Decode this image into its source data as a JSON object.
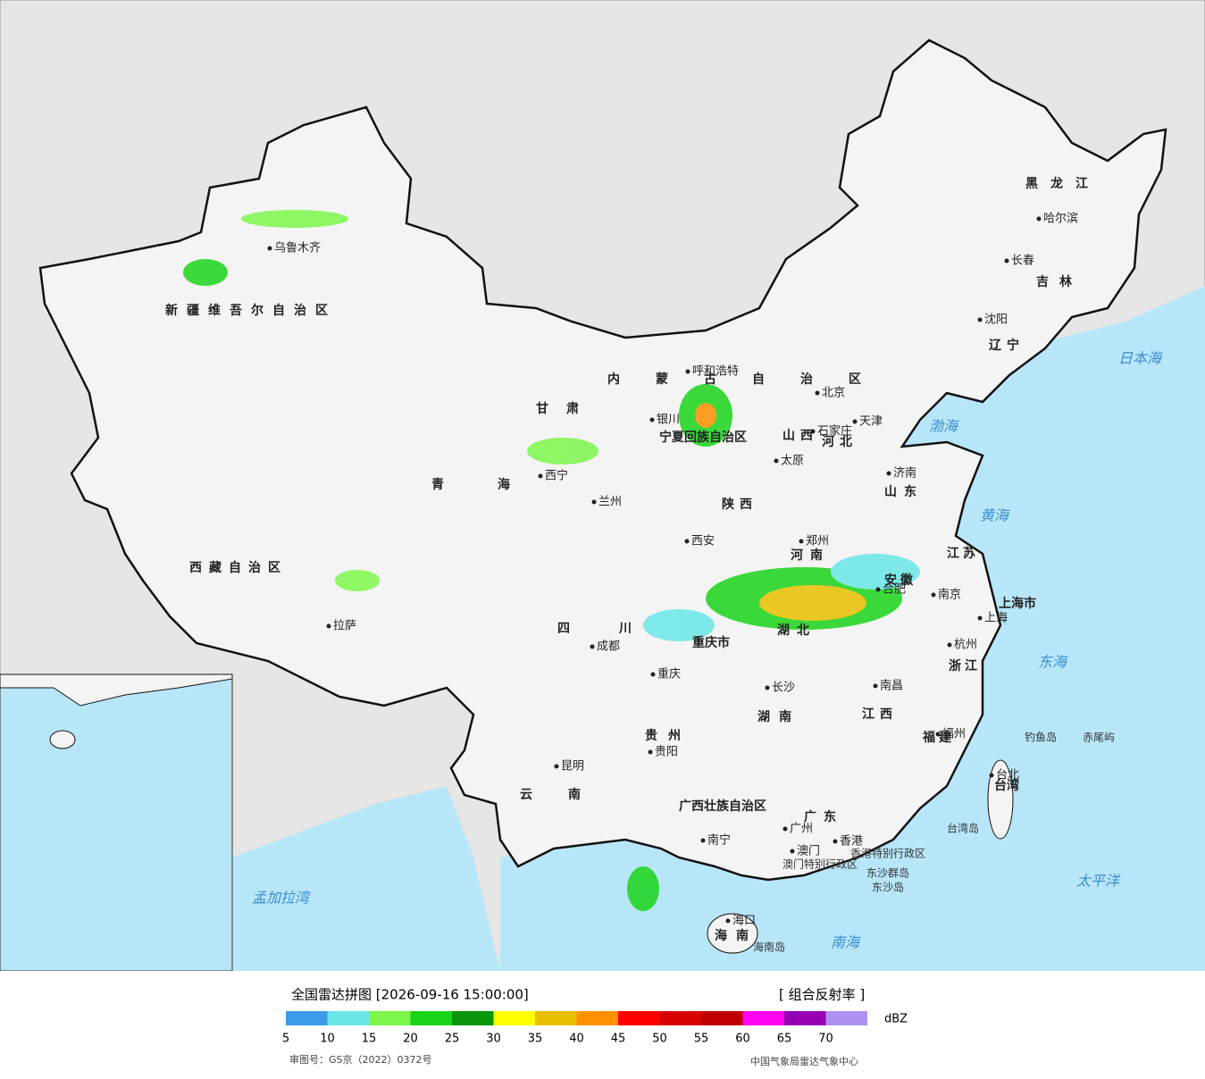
{
  "map": {
    "provinces": [
      "新疆维吾尔自治区",
      "西藏自治区",
      "青海",
      "甘肃",
      "内蒙古自治区",
      "黑龙江",
      "吉林",
      "辽宁",
      "河北",
      "山西",
      "山东",
      "河南",
      "陕西",
      "四川",
      "重庆市",
      "湖北",
      "安徽",
      "江苏",
      "上海市",
      "浙江",
      "江西",
      "湖南",
      "贵州",
      "云南",
      "广西壮族自治区",
      "广东",
      "福建",
      "台湾",
      "海南",
      "宁夏回族自治区"
    ],
    "cities": [
      "乌鲁木齐",
      "拉萨",
      "西宁",
      "兰州",
      "银川",
      "呼和浩特",
      "北京",
      "天津",
      "石家庄",
      "太原",
      "济南",
      "郑州",
      "西安",
      "南京",
      "合肥",
      "上海",
      "杭州",
      "成都",
      "重庆",
      "长沙",
      "南昌",
      "福州",
      "台北",
      "贵阳",
      "昆明",
      "南宁",
      "广州",
      "香港",
      "澳门",
      "海口",
      "哈尔滨",
      "长春",
      "沈阳"
    ],
    "seas": [
      "日本海",
      "渤海",
      "黄海",
      "东海",
      "太平洋",
      "南海",
      "孟加拉湾"
    ],
    "special": [
      "香港特别行政区",
      "澳门特别行政区",
      "钓鱼岛",
      "赤尾屿",
      "台湾岛",
      "东沙群岛",
      "东沙岛",
      "海南岛"
    ]
  },
  "footer": {
    "title": "全国雷达拼图 [2026-09-16 15:00:00]",
    "product": "[ 组合反射率 ]",
    "unit": "dBZ",
    "review_number": "审图号：GS京（2022）0372号",
    "agency": "中国气象局雷达气象中心"
  },
  "legend": {
    "ticks": [
      5,
      10,
      15,
      20,
      25,
      30,
      35,
      40,
      45,
      50,
      55,
      60,
      65,
      70
    ],
    "colors": [
      "#3d9be9",
      "#6ae6e6",
      "#7cf64a",
      "#1ad41a",
      "#0a960a",
      "#ffff00",
      "#e8c000",
      "#ff9000",
      "#ff0000",
      "#d80000",
      "#c00000",
      "#ff00f0",
      "#9600b4",
      "#b090ee"
    ]
  }
}
